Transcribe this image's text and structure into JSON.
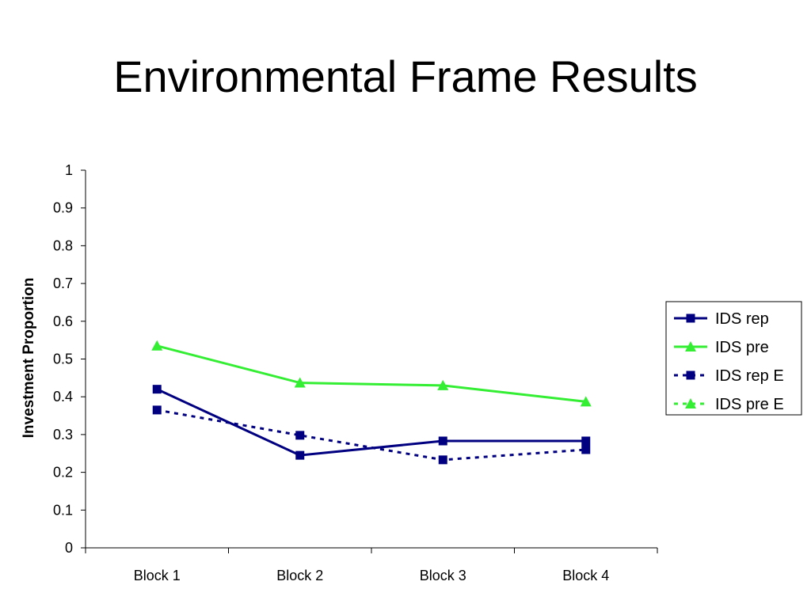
{
  "slide": {
    "title": "Environmental Frame Results"
  },
  "chart_data": {
    "type": "line",
    "title": "",
    "xlabel": "",
    "ylabel": "Investment Proportion",
    "categories": [
      "Block 1",
      "Block 2",
      "Block 3",
      "Block 4"
    ],
    "ylim": [
      0,
      1
    ],
    "yticks": [
      0,
      0.1,
      0.2,
      0.3,
      0.4,
      0.5,
      0.6,
      0.7,
      0.8,
      0.9,
      1
    ],
    "ytick_labels": [
      "0",
      "0.1",
      "0.2",
      "0.3",
      "0.4",
      "0.5",
      "0.6",
      "0.7",
      "0.8",
      "0.9",
      "1"
    ],
    "grid": false,
    "legend_position": "right",
    "series": [
      {
        "name": "IDS rep",
        "values": [
          0.42,
          0.245,
          0.283,
          0.283
        ],
        "color": "#000080",
        "marker": "square",
        "line_style": "solid"
      },
      {
        "name": "IDS pre",
        "values": [
          0.535,
          0.437,
          0.43,
          0.387
        ],
        "color": "#33ee33",
        "marker": "triangle",
        "line_style": "solid"
      },
      {
        "name": "IDS rep E",
        "values": [
          0.365,
          0.298,
          0.233,
          0.26
        ],
        "color": "#000080",
        "marker": "square",
        "line_style": "dashed"
      },
      {
        "name": "IDS pre E",
        "values": [
          null,
          null,
          null,
          null
        ],
        "color": "#33ee33",
        "marker": "triangle",
        "line_style": "dashed"
      }
    ]
  }
}
